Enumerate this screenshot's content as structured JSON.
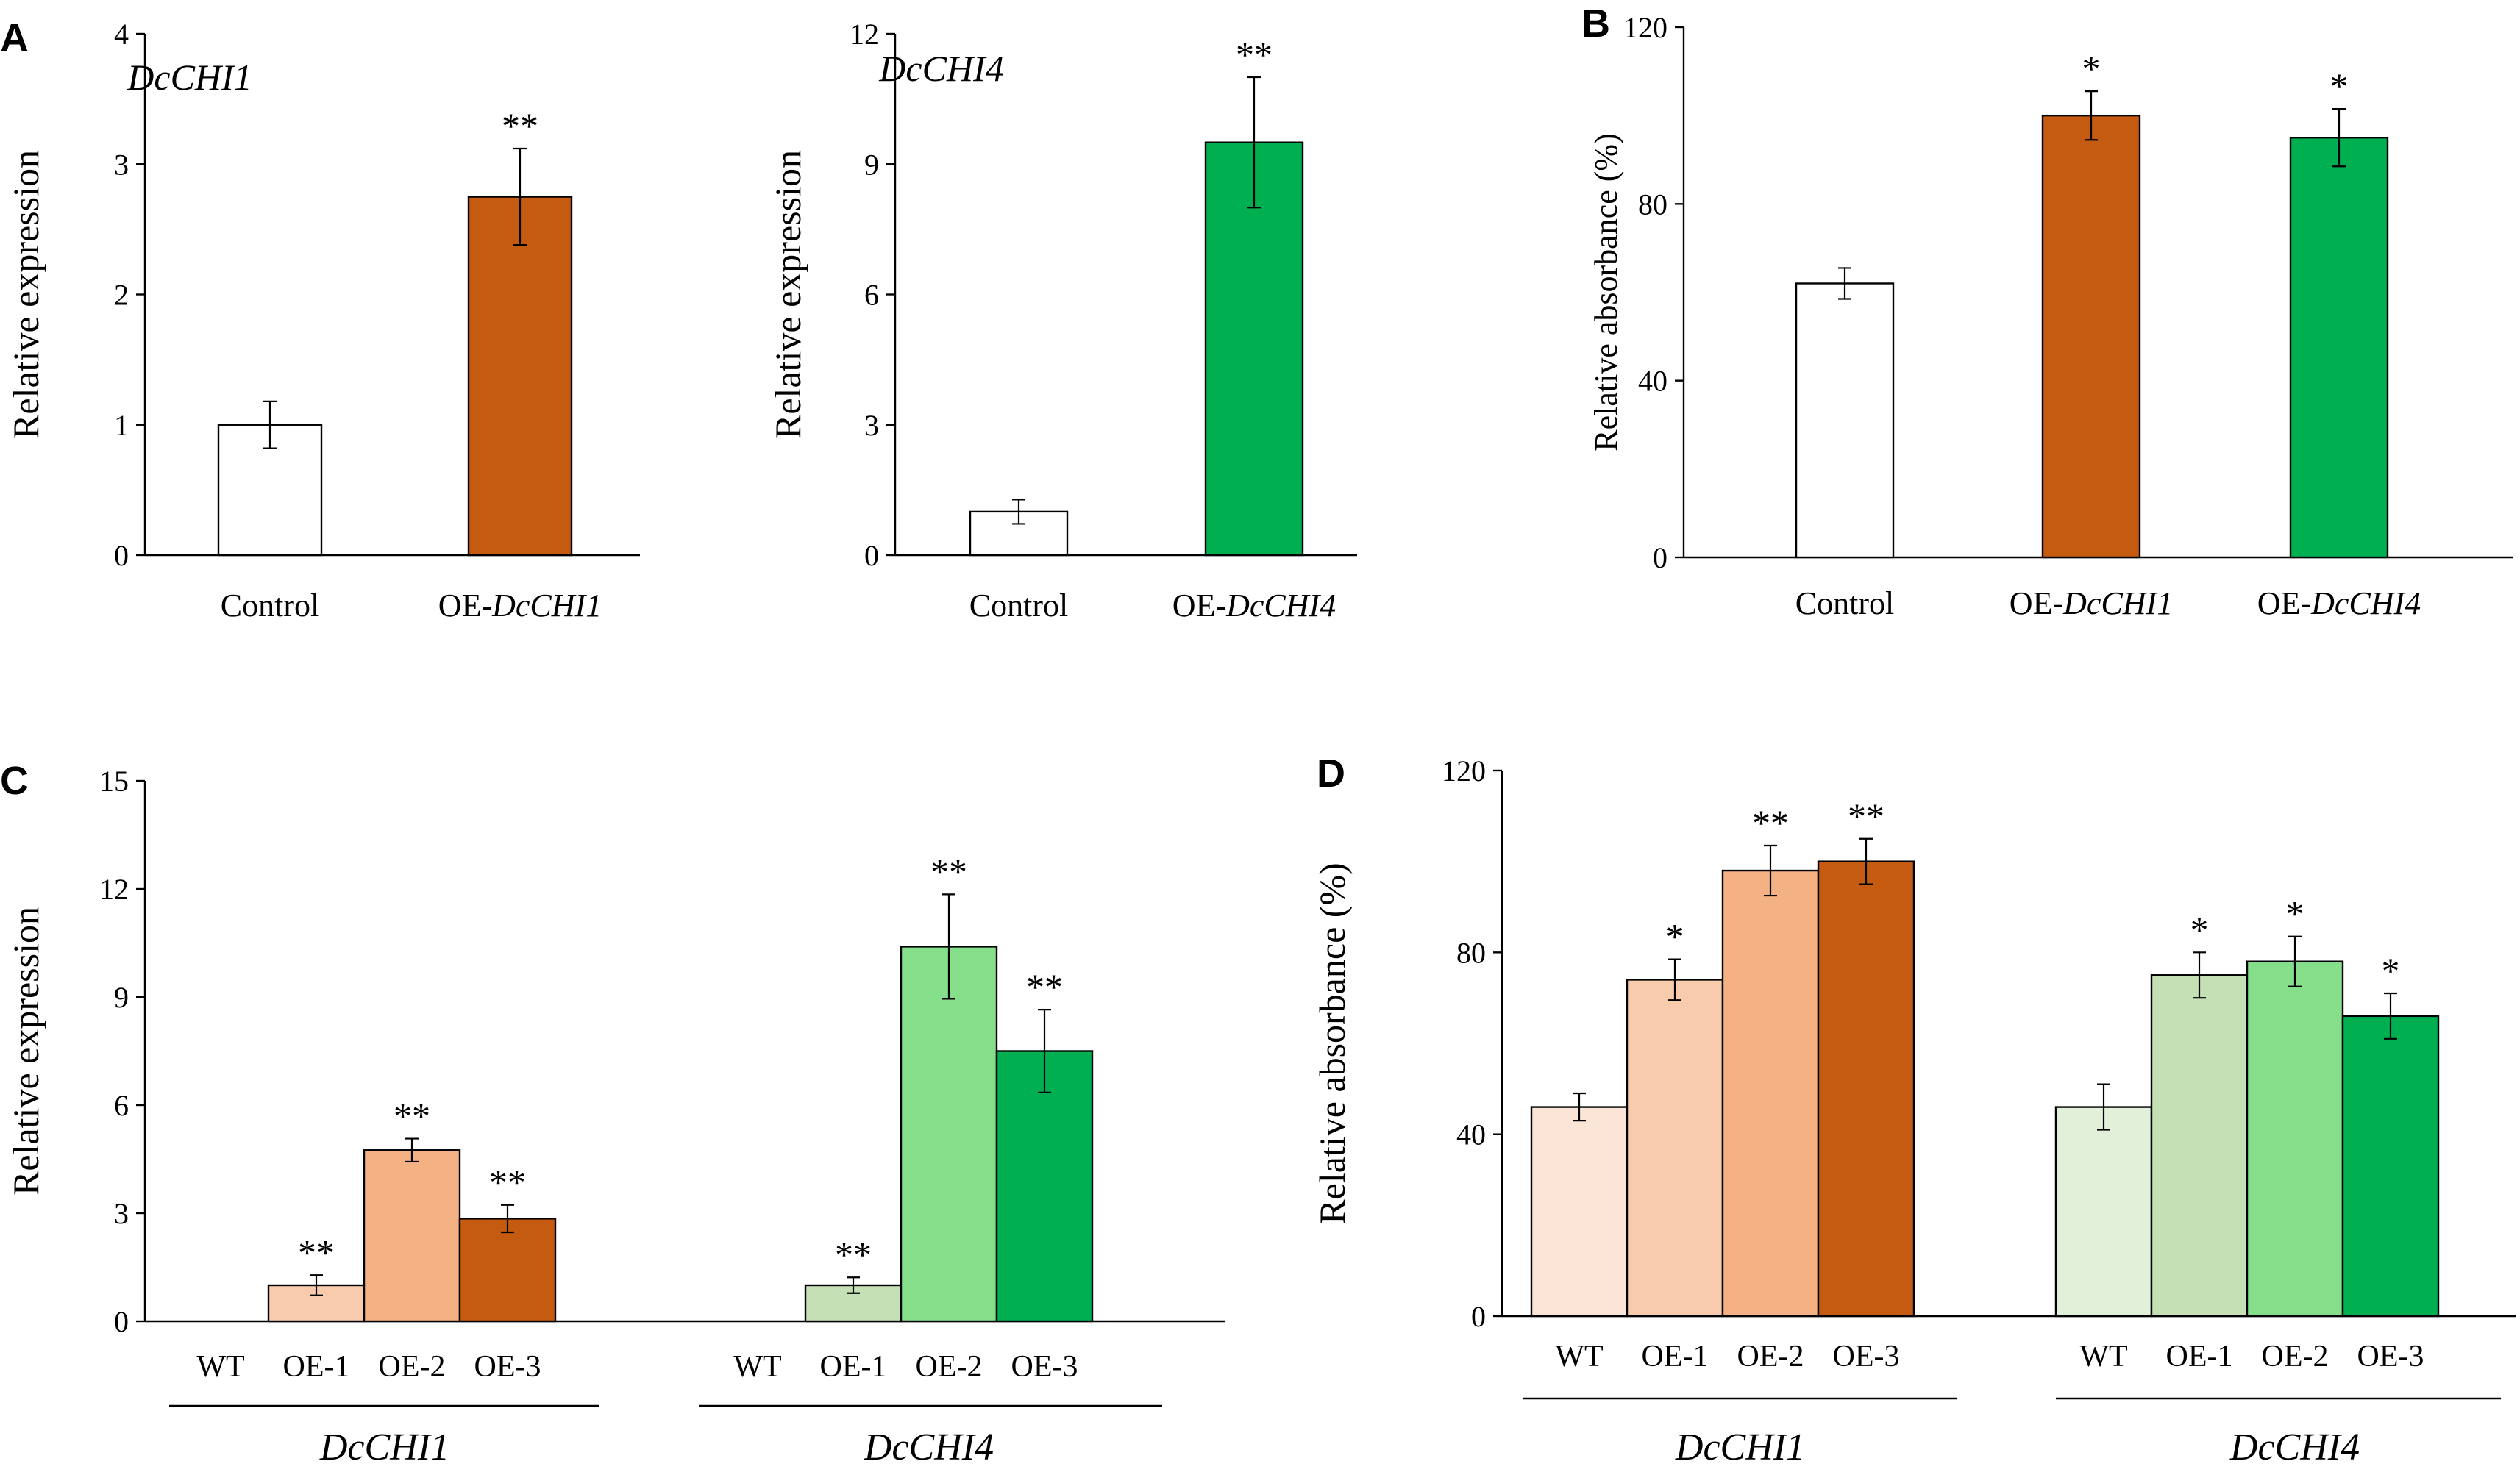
{
  "figure": {
    "panel_labels": [
      "A",
      "B",
      "C",
      "D"
    ]
  },
  "colors": {
    "control": "#FFFFFF",
    "dcchi1_dark": "#C55A11",
    "dcchi1_mid": "#F4B183",
    "dcchi1_light": "#F8CBAD",
    "dcchi1_pale": "#FBE5D6",
    "dcchi4_dark": "#00B050",
    "dcchi4_mid": "#84DE8A",
    "dcchi4_light": "#C5E0B4",
    "dcchi4_pale": "#E2F0D9"
  },
  "chart_data": [
    {
      "id": "A1",
      "type": "bar",
      "panel_label": "A",
      "inset_title": "DcCHI1",
      "ylabel": "Relative expression",
      "ylim": [
        0,
        4
      ],
      "yticks": [
        "0",
        "1",
        "2",
        "3",
        "4"
      ],
      "categories": [
        {
          "prefix": "Control",
          "italic": ""
        },
        {
          "prefix": "OE-",
          "italic": "DcCHI1"
        }
      ],
      "values": [
        1.0,
        2.75
      ],
      "errors": [
        0.18,
        0.37
      ],
      "significance": [
        "",
        "**"
      ],
      "fills": [
        "#FFFFFF",
        "#C55A11"
      ]
    },
    {
      "id": "A2",
      "type": "bar",
      "panel_label": "",
      "inset_title": "DcCHI4",
      "ylabel": "Relative expression",
      "ylim": [
        0,
        12
      ],
      "yticks": [
        "0",
        "3",
        "6",
        "9",
        "12"
      ],
      "categories": [
        {
          "prefix": "Control",
          "italic": ""
        },
        {
          "prefix": "OE-",
          "italic": "DcCHI4"
        }
      ],
      "values": [
        1.0,
        9.5
      ],
      "errors": [
        0.28,
        1.5
      ],
      "significance": [
        "",
        "**"
      ],
      "fills": [
        "#FFFFFF",
        "#00B050"
      ]
    },
    {
      "id": "B",
      "type": "bar",
      "panel_label": "B",
      "ylabel": "Relative absorbance (%)",
      "ylim": [
        0,
        120
      ],
      "yticks": [
        "0",
        "40",
        "80",
        "120"
      ],
      "categories": [
        {
          "prefix": "Control",
          "italic": ""
        },
        {
          "prefix": "OE-",
          "italic": "DcCHI1"
        },
        {
          "prefix": "OE-",
          "italic": "DcCHI4"
        }
      ],
      "values": [
        62,
        100,
        95
      ],
      "errors": [
        3.5,
        5.5,
        6.5
      ],
      "significance": [
        "",
        "*",
        "*"
      ],
      "fills": [
        "#FFFFFF",
        "#C55A11",
        "#00B050"
      ]
    },
    {
      "id": "C",
      "type": "bar",
      "panel_label": "C",
      "ylabel": "Relative expression",
      "ylim": [
        0,
        15
      ],
      "yticks": [
        "0",
        "3",
        "6",
        "9",
        "12",
        "15"
      ],
      "groups": [
        {
          "name": "DcCHI1",
          "categories": [
            "WT",
            "OE-1",
            "OE-2",
            "OE-3"
          ],
          "values": [
            0,
            1.0,
            4.75,
            2.85
          ],
          "errors": [
            0,
            0.28,
            0.32,
            0.38
          ],
          "significance": [
            "",
            "**",
            "**",
            "**"
          ],
          "fills": [
            "#FFFFFF",
            "#F8CBAD",
            "#F4B183",
            "#C55A11"
          ]
        },
        {
          "name": "DcCHI4",
          "categories": [
            "WT",
            "OE-1",
            "OE-2",
            "OE-3"
          ],
          "values": [
            0,
            1.0,
            10.4,
            7.5
          ],
          "errors": [
            0,
            0.22,
            1.45,
            1.15
          ],
          "significance": [
            "",
            "**",
            "**",
            "**"
          ],
          "fills": [
            "#FFFFFF",
            "#C5E0B4",
            "#84DE8A",
            "#00B050"
          ]
        }
      ]
    },
    {
      "id": "D",
      "type": "bar",
      "panel_label": "D",
      "ylabel": "Relative absorbance (%)",
      "ylim": [
        0,
        120
      ],
      "yticks": [
        "0",
        "40",
        "80",
        "120"
      ],
      "groups": [
        {
          "name": "DcCHI1",
          "categories": [
            "WT",
            "OE-1",
            "OE-2",
            "OE-3"
          ],
          "values": [
            46,
            74,
            98,
            100
          ],
          "errors": [
            3,
            4.5,
            5.5,
            5
          ],
          "significance": [
            "",
            "*",
            "**",
            "**"
          ],
          "fills": [
            "#FBE5D6",
            "#F8CBAD",
            "#F4B183",
            "#C55A11"
          ]
        },
        {
          "name": "DcCHI4",
          "categories": [
            "WT",
            "OE-1",
            "OE-2",
            "OE-3"
          ],
          "values": [
            46,
            75,
            78,
            66
          ],
          "errors": [
            5,
            5,
            5.5,
            5
          ],
          "significance": [
            "",
            "*",
            "*",
            "*"
          ],
          "fills": [
            "#E2F0D9",
            "#C5E0B4",
            "#84DE8A",
            "#00B050"
          ]
        }
      ]
    }
  ]
}
